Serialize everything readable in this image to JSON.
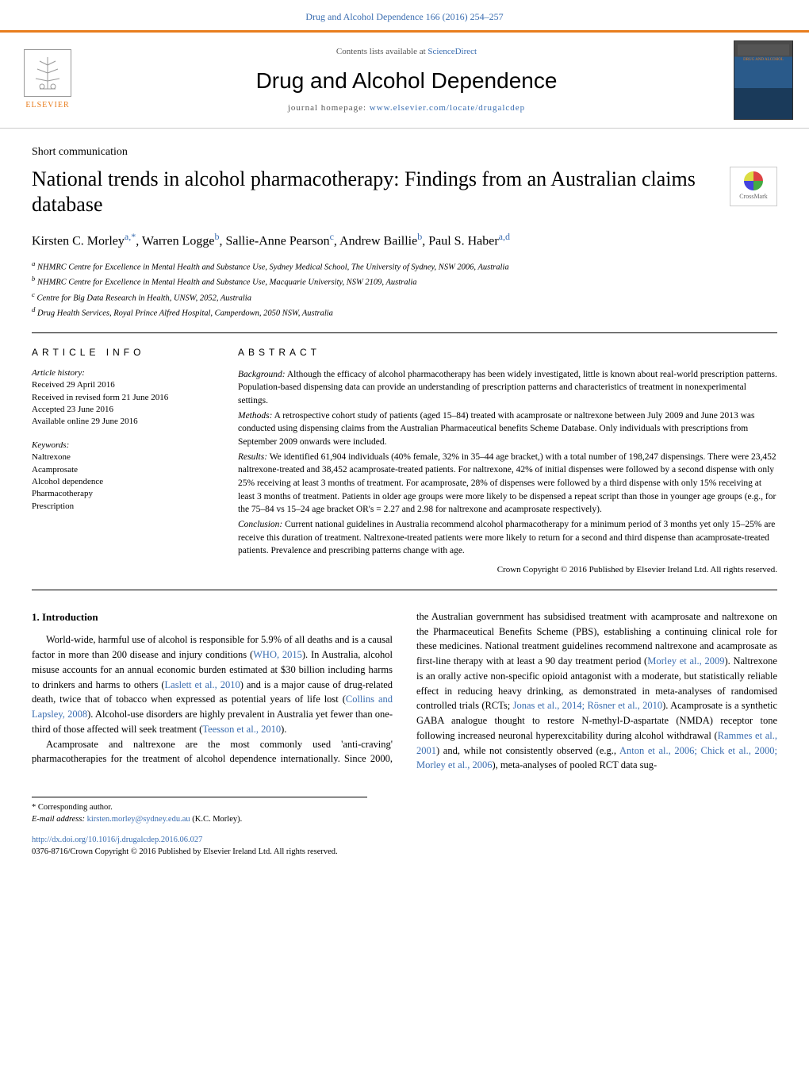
{
  "colors": {
    "link": "#3a6db0",
    "accent": "#e87d1e",
    "text": "#000000",
    "muted": "#555555"
  },
  "top_link": {
    "text": "Drug and Alcohol Dependence 166 (2016) 254–257",
    "href": "#"
  },
  "header": {
    "elsevier_label": "ELSEVIER",
    "contents_prefix": "Contents lists available at ",
    "contents_link": "ScienceDirect",
    "journal_name": "Drug and Alcohol Dependence",
    "homepage_prefix": "journal homepage: ",
    "homepage_link": "www.elsevier.com/locate/drugalcdep",
    "cover_title": "DRUG AND ALCOHOL"
  },
  "article": {
    "type": "Short communication",
    "title": "National trends in alcohol pharmacotherapy: Findings from an Australian claims database",
    "crossmark_label": "CrossMark",
    "authors_html": "Kirsten C. Morley",
    "authors": [
      {
        "name": "Kirsten C. Morley",
        "sup": "a,*"
      },
      {
        "name": "Warren Logge",
        "sup": "b"
      },
      {
        "name": "Sallie-Anne Pearson",
        "sup": "c"
      },
      {
        "name": "Andrew Baillie",
        "sup": "b"
      },
      {
        "name": "Paul S. Haber",
        "sup": "a,d"
      }
    ],
    "affiliations": [
      {
        "sup": "a",
        "text": "NHMRC Centre for Excellence in Mental Health and Substance Use, Sydney Medical School, The University of Sydney, NSW 2006, Australia"
      },
      {
        "sup": "b",
        "text": "NHMRC Centre for Excellence in Mental Health and Substance Use, Macquarie University, NSW 2109, Australia"
      },
      {
        "sup": "c",
        "text": "Centre for Big Data Research in Health, UNSW, 2052, Australia"
      },
      {
        "sup": "d",
        "text": "Drug Health Services, Royal Prince Alfred Hospital, Camperdown, 2050 NSW, Australia"
      }
    ]
  },
  "article_info": {
    "heading": "ARTICLE INFO",
    "history_label": "Article history:",
    "history": [
      "Received 29 April 2016",
      "Received in revised form 21 June 2016",
      "Accepted 23 June 2016",
      "Available online 29 June 2016"
    ],
    "keywords_label": "Keywords:",
    "keywords": [
      "Naltrexone",
      "Acamprosate",
      "Alcohol dependence",
      "Pharmacotherapy",
      "Prescription"
    ]
  },
  "abstract": {
    "heading": "ABSTRACT",
    "sections": [
      {
        "label": "Background:",
        "text": " Although the efficacy of alcohol pharmacotherapy has been widely investigated, little is known about real-world prescription patterns. Population-based dispensing data can provide an understanding of prescription patterns and characteristics of treatment in nonexperimental settings."
      },
      {
        "label": "Methods:",
        "text": " A retrospective cohort study of patients (aged 15–84) treated with acamprosate or naltrexone between July 2009 and June 2013 was conducted using dispensing claims from the Australian Pharmaceutical benefits Scheme Database. Only individuals with prescriptions from September 2009 onwards were included."
      },
      {
        "label": "Results:",
        "text": " We identified 61,904 individuals (40% female, 32% in 35–44 age bracket,) with a total number of 198,247 dispensings. There were 23,452 naltrexone-treated and 38,452 acamprosate-treated patients. For naltrexone, 42% of initial dispenses were followed by a second dispense with only 25% receiving at least 3 months of treatment. For acamprosate, 28% of dispenses were followed by a third dispense with only 15% receiving at least 3 months of treatment. Patients in older age groups were more likely to be dispensed a repeat script than those in younger age groups (e.g., for the 75–84 vs 15–24 age bracket OR's = 2.27 and 2.98 for naltrexone and acamprosate respectively)."
      },
      {
        "label": "Conclusion:",
        "text": " Current national guidelines in Australia recommend alcohol pharmacotherapy for a minimum period of 3 months yet only 15–25% are receive this duration of treatment. Naltrexone-treated patients were more likely to return for a second and third dispense than acamprosate-treated patients. Prevalence and prescribing patterns change with age."
      }
    ],
    "copyright": "Crown Copyright © 2016 Published by Elsevier Ireland Ltd. All rights reserved."
  },
  "intro": {
    "heading": "1. Introduction",
    "p1_pre": "World-wide, harmful use of alcohol is responsible for 5.9% of all deaths and is a causal factor in more than 200 disease and injury conditions (",
    "p1_link1": "WHO, 2015",
    "p1_mid1": "). In Australia, alcohol misuse accounts for an annual economic burden estimated at $30 billion including harms to drinkers and harms to others (",
    "p1_link2": "Laslett et al., 2010",
    "p1_mid2": ") and is a major cause of drug-related death, twice that of tobacco when expressed as potential years of life lost (",
    "p1_link3": "Collins and Lapsley, 2008",
    "p1_mid3": "). Alcohol-use disorders are highly prevalent in Australia yet fewer than one-third of those affected will seek treatment (",
    "p1_link4": "Teesson et al., 2010",
    "p1_post": ").",
    "p2_pre": "Acamprosate and naltrexone are the most commonly used 'anti-craving' pharmacotherapies for the treatment of alcohol dependence internationally. Since 2000, the Australian government has subsidised treatment with acamprosate and naltrexone on the Pharmaceutical Benefits Scheme (PBS), establishing a continuing clinical role for these medicines. National treatment guidelines recommend naltrexone and acamprosate as first-line therapy with at least a 90 day treatment period (",
    "p2_link1": "Morley et al., 2009",
    "p2_mid1": "). Naltrexone is an orally active non-specific opioid antagonist with a moderate, but statistically reliable effect in reducing heavy drinking, as demonstrated in meta-analyses of randomised controlled trials (RCTs; ",
    "p2_link2": "Jonas et al., 2014; Rösner et al., 2010",
    "p2_mid2": "). Acamprosate is a synthetic GABA analogue thought to restore N-methyl-",
    "p2_small": "D",
    "p2_mid3": "-aspartate (NMDA) receptor tone following increased neuronal hyperexcitability during alcohol withdrawal (",
    "p2_link3": "Rammes et al., 2001",
    "p2_mid4": ") and, while not consistently observed (e.g., ",
    "p2_link4": "Anton et al., 2006; Chick et al., 2000; Morley et al., 2006",
    "p2_post": "), meta-analyses of pooled RCT data sug-"
  },
  "footer": {
    "corr_label": "* Corresponding author.",
    "email_label": "E-mail address: ",
    "email": "kirsten.morley@sydney.edu.au",
    "email_suffix": " (K.C. Morley).",
    "doi_url": "http://dx.doi.org/10.1016/j.drugalcdep.2016.06.027",
    "issn_line": "0376-8716/Crown Copyright © 2016 Published by Elsevier Ireland Ltd. All rights reserved."
  }
}
